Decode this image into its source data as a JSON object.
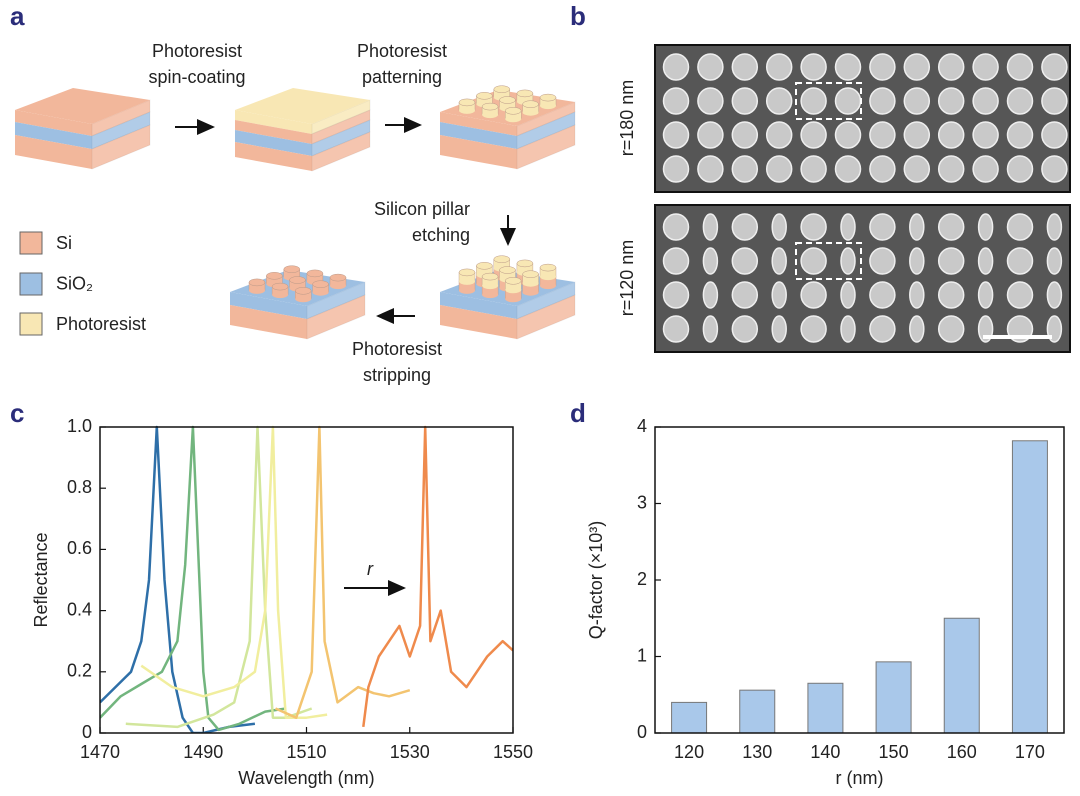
{
  "panel_labels": [
    "a",
    "b",
    "c",
    "d"
  ],
  "fabrication": {
    "steps": [
      [
        "Photoresist",
        "spin-coating"
      ],
      [
        "Photoresist",
        "patterning"
      ],
      [
        "Silicon pillar",
        "etching"
      ],
      [
        "Photoresist",
        "stripping"
      ]
    ],
    "legend": [
      "Si",
      "SiO₂",
      "Photoresist"
    ]
  },
  "sem": {
    "labels": [
      "r=180 nm",
      "r=120 nm"
    ]
  },
  "chart_data": [
    {
      "type": "line",
      "xlabel": "Wavelength (nm)",
      "ylabel": "Reflectance",
      "annotations": [
        "r"
      ],
      "xlim": [
        1470,
        1550
      ],
      "xticks": [
        1470,
        1490,
        1510,
        1530,
        1550
      ],
      "ylim": [
        0,
        1
      ],
      "yticks": [
        0,
        0.2,
        0.4,
        0.6,
        0.8,
        {
          "value": 1,
          "label": "1.0"
        }
      ],
      "series": [
        {
          "color": "#2e6fa8",
          "x": [
            1470,
            1476,
            1478,
            1479.5,
            1481,
            1482.5,
            1484,
            1486,
            1488,
            1490,
            1495,
            1500
          ],
          "values": [
            0.1,
            0.2,
            0.3,
            0.5,
            1.0,
            0.5,
            0.2,
            0.05,
            0.0,
            0.0,
            0.02,
            0.03
          ]
        },
        {
          "color": "#72b57e",
          "x": [
            1470,
            1474,
            1478,
            1482,
            1485,
            1486.5,
            1488,
            1489,
            1490,
            1491,
            1493,
            1497,
            1502,
            1506
          ],
          "values": [
            0.05,
            0.12,
            0.16,
            0.2,
            0.3,
            0.55,
            1.0,
            0.6,
            0.2,
            0.05,
            0.01,
            0.03,
            0.07,
            0.08
          ]
        },
        {
          "color": "#d2e69c",
          "x": [
            1475,
            1485,
            1492,
            1496,
            1499,
            1500.5,
            1502,
            1503.5,
            1506,
            1511
          ],
          "values": [
            0.03,
            0.02,
            0.06,
            0.1,
            0.3,
            1.0,
            0.4,
            0.05,
            0.05,
            0.08
          ]
        },
        {
          "color": "#f1ee9e",
          "x": [
            1478,
            1484,
            1490,
            1496,
            1500,
            1502,
            1503.5,
            1504.5,
            1506,
            1510,
            1514
          ],
          "values": [
            0.22,
            0.15,
            0.12,
            0.15,
            0.2,
            0.4,
            1.0,
            0.4,
            0.05,
            0.05,
            0.06
          ]
        },
        {
          "color": "#f3c470",
          "x": [
            1504,
            1508,
            1511,
            1512.5,
            1513.5,
            1516,
            1520,
            1523,
            1526,
            1530
          ],
          "values": [
            0.08,
            0.05,
            0.2,
            1.0,
            0.3,
            0.1,
            0.15,
            0.13,
            0.12,
            0.14
          ]
        },
        {
          "color": "#ef8a4c",
          "x": [
            1521,
            1522,
            1524,
            1526,
            1528,
            1530,
            1532,
            1533,
            1534,
            1536,
            1538,
            1541,
            1545,
            1548,
            1550
          ],
          "values": [
            0.02,
            0.15,
            0.25,
            0.3,
            0.35,
            0.25,
            0.35,
            1.0,
            0.3,
            0.4,
            0.2,
            0.15,
            0.25,
            0.3,
            0.27
          ]
        }
      ]
    },
    {
      "type": "bar",
      "xlabel": "r (nm)",
      "ylabel": "Q-factor (×10³)",
      "categories": [
        "120",
        "130",
        "140",
        "150",
        "160",
        "170"
      ],
      "values": [
        0.4,
        0.56,
        0.65,
        0.93,
        1.5,
        3.82
      ],
      "color": "#a9c8ea",
      "ylim": [
        0,
        4
      ],
      "yticks": [
        0,
        1,
        2,
        3,
        4
      ]
    }
  ]
}
